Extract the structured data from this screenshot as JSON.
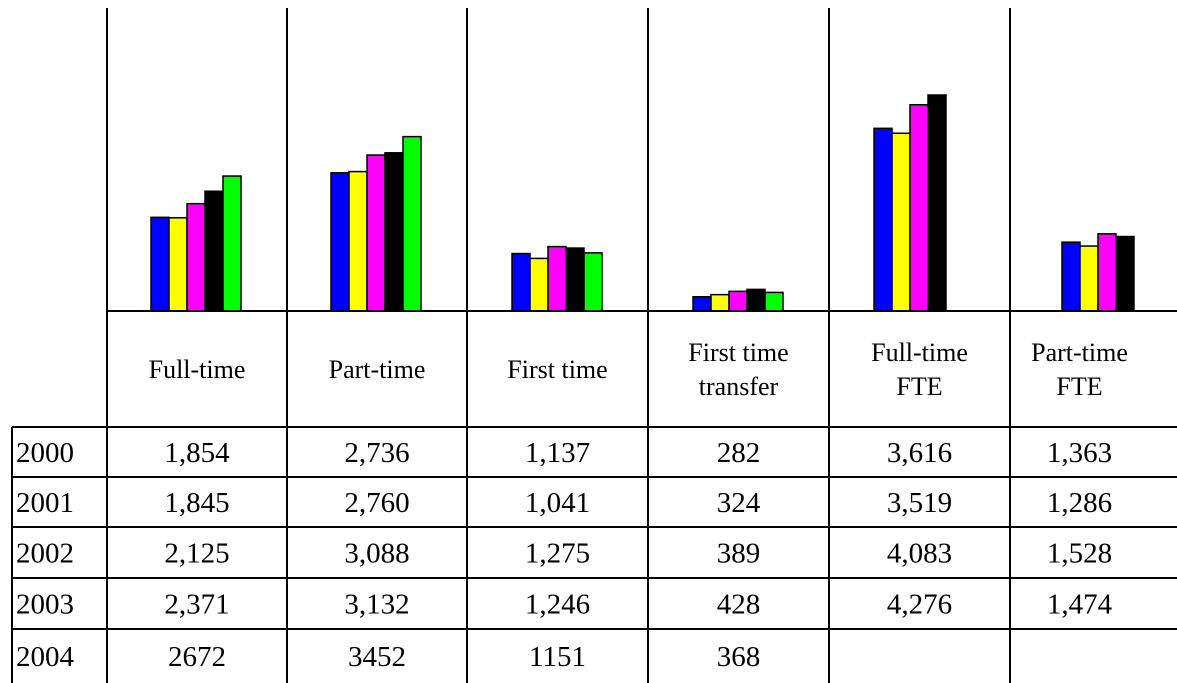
{
  "chart_data": {
    "type": "bar",
    "categories": [
      "Full-time",
      "Part-time",
      "First time",
      "First time transfer",
      "Full-time FTE",
      "Part-time FTE"
    ],
    "category_display": [
      [
        "Full-time"
      ],
      [
        "Part-time"
      ],
      [
        "First time"
      ],
      [
        "First time",
        "transfer"
      ],
      [
        "Full-time",
        "FTE"
      ],
      [
        "Part-time",
        "FTE"
      ]
    ],
    "ylim": [
      0,
      4300
    ],
    "grid": false,
    "legend": "none",
    "series": [
      {
        "name": "2000",
        "color": "#0000ff",
        "values": [
          1854,
          2736,
          1137,
          282,
          3616,
          1363
        ]
      },
      {
        "name": "2001",
        "color": "#ffff00",
        "values": [
          1845,
          2760,
          1041,
          324,
          3519,
          1286
        ]
      },
      {
        "name": "2002",
        "color": "#ff00ff",
        "values": [
          2125,
          3088,
          1275,
          389,
          4083,
          1528
        ]
      },
      {
        "name": "2003",
        "color": "#000000",
        "values": [
          2371,
          3132,
          1246,
          428,
          4276,
          1474
        ]
      },
      {
        "name": "2004",
        "color": "#00ff00",
        "values": [
          2672,
          3452,
          1151,
          368,
          null,
          null
        ]
      }
    ],
    "table_text": [
      [
        "1,854",
        "2,736",
        "1,137",
        "282",
        "3,616",
        "1,363"
      ],
      [
        "1,845",
        "2,760",
        "1,041",
        "324",
        "3,519",
        "1,286"
      ],
      [
        "2,125",
        "3,088",
        "1,275",
        "389",
        "4,083",
        "1,528"
      ],
      [
        "2,371",
        "3,132",
        "1,246",
        "428",
        "4,276",
        "1,474"
      ],
      [
        "2672",
        "3452",
        "1151",
        "368",
        "",
        ""
      ]
    ]
  }
}
